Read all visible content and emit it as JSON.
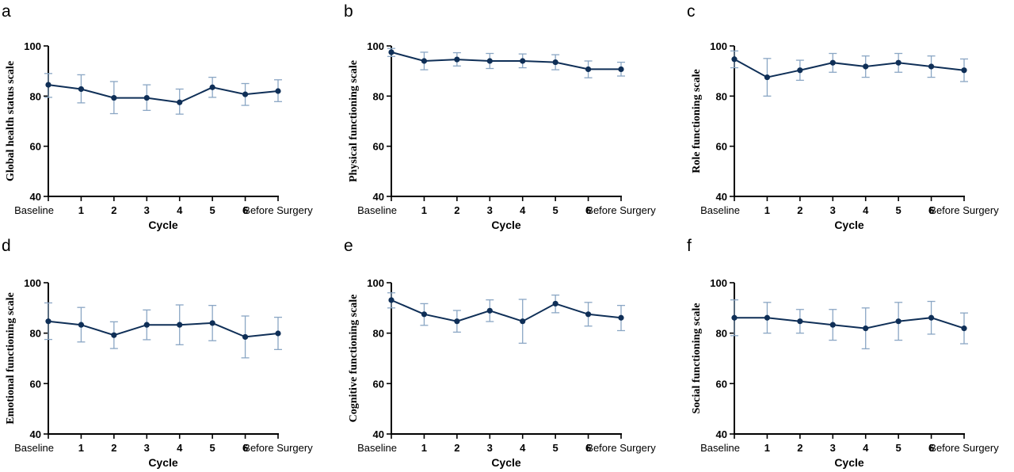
{
  "colors": {
    "line": "#0f2f57",
    "errorbar": "#8aa6c4",
    "axis": "#000000"
  },
  "chart_data": [
    {
      "panel": "a",
      "type": "line",
      "ylabel": "Global health status scale",
      "xlabel": "Cycle",
      "categories": [
        "Baseline",
        "1",
        "2",
        "3",
        "4",
        "5",
        "6",
        "Before Surgery"
      ],
      "ylim": [
        40,
        100
      ],
      "yticks": [
        40,
        60,
        80,
        100
      ],
      "values": [
        84.5,
        82.8,
        79.3,
        79.3,
        77.5,
        83.5,
        80.7,
        82.0
      ],
      "error_low": [
        79.5,
        77.3,
        73.0,
        74.3,
        72.8,
        79.5,
        76.3,
        77.8
      ],
      "error_high": [
        89.0,
        88.5,
        85.8,
        84.5,
        82.8,
        87.5,
        85.0,
        86.5
      ]
    },
    {
      "panel": "b",
      "type": "line",
      "ylabel": "Physical functioning scale",
      "xlabel": "Cycle",
      "categories": [
        "Baseline",
        "1",
        "2",
        "3",
        "4",
        "5",
        "6",
        "Before Surgery"
      ],
      "ylim": [
        40,
        100
      ],
      "yticks": [
        40,
        60,
        80,
        100
      ],
      "values": [
        97.5,
        94.0,
        94.6,
        94.0,
        94.0,
        93.5,
        90.7,
        90.7
      ],
      "error_low": [
        95.8,
        90.5,
        92.0,
        91.0,
        91.3,
        90.5,
        87.3,
        88.0
      ],
      "error_high": [
        99.0,
        97.5,
        97.3,
        97.0,
        96.8,
        96.5,
        94.0,
        93.5
      ]
    },
    {
      "panel": "c",
      "type": "line",
      "ylabel": "Role functioning scale",
      "xlabel": "Cycle",
      "categories": [
        "Baseline",
        "1",
        "2",
        "3",
        "4",
        "5",
        "6",
        "Before Surgery"
      ],
      "ylim": [
        40,
        100
      ],
      "yticks": [
        40,
        60,
        80,
        100
      ],
      "values": [
        94.7,
        87.5,
        90.3,
        93.3,
        91.8,
        93.3,
        91.8,
        90.3
      ],
      "error_low": [
        91.3,
        80.0,
        86.3,
        89.5,
        87.5,
        89.5,
        87.5,
        85.8
      ],
      "error_high": [
        98.0,
        95.0,
        94.3,
        97.0,
        96.0,
        97.0,
        96.0,
        94.8
      ]
    },
    {
      "panel": "d",
      "type": "line",
      "ylabel": "Emotional functioning scale",
      "xlabel": "Cycle",
      "categories": [
        "Baseline",
        "1",
        "2",
        "3",
        "4",
        "5",
        "6",
        "Before Surgery"
      ],
      "ylim": [
        40,
        100
      ],
      "yticks": [
        40,
        60,
        80,
        100
      ],
      "values": [
        84.7,
        83.3,
        79.2,
        83.3,
        83.3,
        84.0,
        78.5,
        79.9
      ],
      "error_low": [
        77.5,
        76.5,
        73.9,
        77.4,
        75.4,
        77.0,
        70.2,
        73.5
      ],
      "error_high": [
        92.0,
        90.2,
        84.5,
        89.2,
        91.2,
        91.0,
        86.8,
        86.3
      ]
    },
    {
      "panel": "e",
      "type": "line",
      "ylabel": "Cognitive functioning scale",
      "xlabel": "Cycle",
      "categories": [
        "Baseline",
        "1",
        "2",
        "3",
        "4",
        "5",
        "6",
        "Before Surgery"
      ],
      "ylim": [
        40,
        100
      ],
      "yticks": [
        40,
        60,
        80,
        100
      ],
      "values": [
        93.1,
        87.5,
        84.7,
        88.9,
        84.7,
        91.7,
        87.5,
        86.1
      ],
      "error_low": [
        90.0,
        83.1,
        80.4,
        84.6,
        76.0,
        88.1,
        82.8,
        81.0
      ],
      "error_high": [
        96.0,
        91.7,
        89.0,
        93.2,
        93.4,
        95.1,
        92.2,
        91.0
      ]
    },
    {
      "panel": "f",
      "type": "line",
      "ylabel": "Social functioning scale",
      "xlabel": "Cycle",
      "categories": [
        "Baseline",
        "1",
        "2",
        "3",
        "4",
        "5",
        "6",
        "Before Surgery"
      ],
      "ylim": [
        40,
        100
      ],
      "yticks": [
        40,
        60,
        80,
        100
      ],
      "values": [
        86.1,
        86.1,
        84.7,
        83.3,
        81.9,
        84.7,
        86.1,
        81.9
      ],
      "error_low": [
        79.0,
        80.0,
        80.0,
        77.2,
        73.8,
        77.2,
        79.6,
        75.8
      ],
      "error_high": [
        93.2,
        92.2,
        89.4,
        89.4,
        90.0,
        92.2,
        92.6,
        88.0
      ]
    }
  ]
}
